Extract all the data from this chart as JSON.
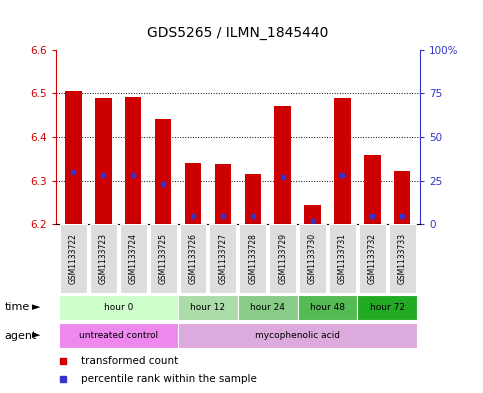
{
  "title": "GDS5265 / ILMN_1845440",
  "samples": [
    "GSM1133722",
    "GSM1133723",
    "GSM1133724",
    "GSM1133725",
    "GSM1133726",
    "GSM1133727",
    "GSM1133728",
    "GSM1133729",
    "GSM1133730",
    "GSM1133731",
    "GSM1133732",
    "GSM1133733"
  ],
  "transformed_count": [
    6.505,
    6.49,
    6.492,
    6.442,
    6.34,
    6.338,
    6.315,
    6.47,
    6.244,
    6.49,
    6.358,
    6.322
  ],
  "percentile_rank": [
    30,
    28,
    28,
    23,
    5,
    5,
    5,
    27,
    2,
    28,
    5,
    5
  ],
  "ylim_left": [
    6.2,
    6.6
  ],
  "ylim_right": [
    0,
    100
  ],
  "yticks_left": [
    6.2,
    6.3,
    6.4,
    6.5,
    6.6
  ],
  "yticks_right": [
    0,
    25,
    50,
    75,
    100
  ],
  "ytick_labels_right": [
    "0",
    "25",
    "50",
    "75",
    "100%"
  ],
  "bar_color": "#cc0000",
  "percentile_color": "#3333cc",
  "time_groups": [
    {
      "label": "hour 0",
      "indices": [
        0,
        1,
        2,
        3
      ],
      "color": "#ccffcc"
    },
    {
      "label": "hour 12",
      "indices": [
        4,
        5
      ],
      "color": "#aaddaa"
    },
    {
      "label": "hour 24",
      "indices": [
        6,
        7
      ],
      "color": "#88cc88"
    },
    {
      "label": "hour 48",
      "indices": [
        8,
        9
      ],
      "color": "#55bb55"
    },
    {
      "label": "hour 72",
      "indices": [
        10,
        11
      ],
      "color": "#22aa22"
    }
  ],
  "agent_groups": [
    {
      "label": "untreated control",
      "indices": [
        0,
        1,
        2,
        3
      ],
      "color": "#ee88ee"
    },
    {
      "label": "mycophenolic acid",
      "indices": [
        4,
        5,
        6,
        7,
        8,
        9,
        10,
        11
      ],
      "color": "#ddaadd"
    }
  ],
  "legend_items": [
    {
      "label": "transformed count",
      "color": "#cc0000"
    },
    {
      "label": "percentile rank within the sample",
      "color": "#3333cc"
    }
  ],
  "baseline": 6.2,
  "bar_width": 0.55
}
